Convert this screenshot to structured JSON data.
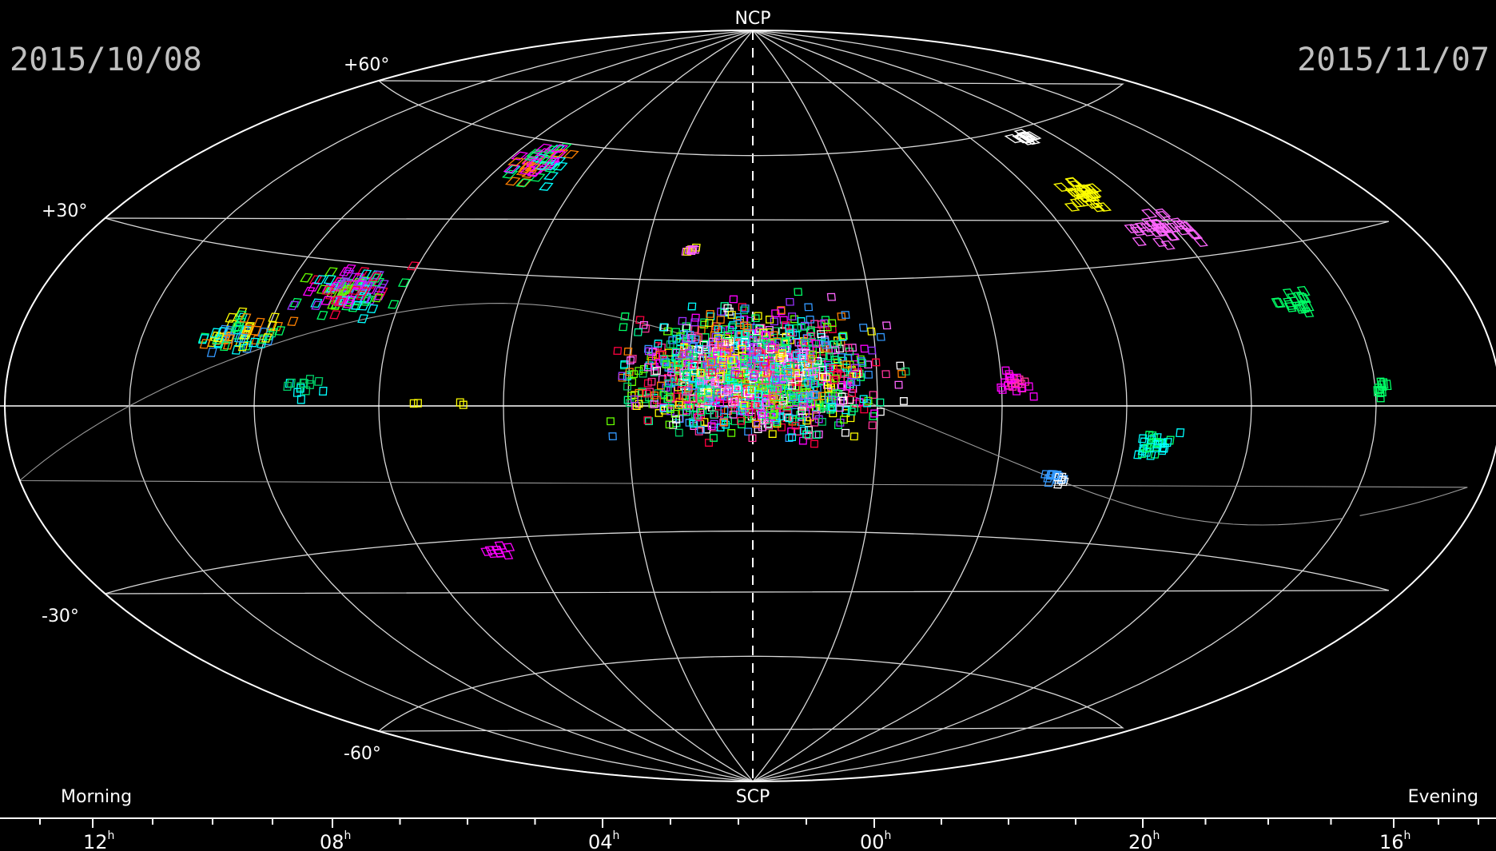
{
  "dates": {
    "start": "2015/10/08",
    "end": "2015/11/07"
  },
  "poles": {
    "north": "NCP",
    "south": "SCP"
  },
  "declination_labels": [
    {
      "dec": 60,
      "text": "+60°"
    },
    {
      "dec": 30,
      "text": "+30°"
    },
    {
      "dec": -30,
      "text": "-30°"
    },
    {
      "dec": -60,
      "text": "-60°"
    }
  ],
  "sides": {
    "left": "Morning",
    "right": "Evening"
  },
  "ra_labels": [
    {
      "hours": "12",
      "sup": "h"
    },
    {
      "hours": "08",
      "sup": "h"
    },
    {
      "hours": "04",
      "sup": "h"
    },
    {
      "hours": "00",
      "sup": "h"
    },
    {
      "hours": "20",
      "sup": "h"
    },
    {
      "hours": "16",
      "sup": "h"
    }
  ],
  "colors": {
    "background": "#000000",
    "grid": "#d9d9d9",
    "boundary": "#ffffff",
    "fields": [
      "#ff00ff",
      "#00ff66",
      "#00ffff",
      "#ff8000",
      "#ffff00",
      "#ff0040",
      "#ffffff",
      "#3399ff",
      "#9933ff",
      "#66ff00",
      "#00ff99",
      "#ff66ff",
      "#00cc66",
      "#ff3399"
    ]
  },
  "map": {
    "projection": "aitoff",
    "center_ra_hours": 2,
    "ra_direction": "increasing-right-to-left",
    "field_clusters": [
      {
        "ra_h": 7.2,
        "dec": 55,
        "count": 55,
        "spread": [
          0.9,
          6
        ],
        "colors": [
          "#ff00ff",
          "#ff8000",
          "#00ff66",
          "#00ffff"
        ]
      },
      {
        "ra_h": 8.9,
        "dec": 24,
        "count": 120,
        "spread": [
          1.0,
          7
        ],
        "colors": [
          "#00ff66",
          "#00ffff",
          "#ff0040",
          "#ff00ff",
          "#66ff00",
          "#9933ff"
        ]
      },
      {
        "ra_h": 10.4,
        "dec": 14,
        "count": 70,
        "spread": [
          0.9,
          5
        ],
        "colors": [
          "#ff8000",
          "#ffff00",
          "#00ffff",
          "#00ff66",
          "#3399ff"
        ]
      },
      {
        "ra_h": 9.2,
        "dec": 4,
        "count": 14,
        "spread": [
          0.4,
          3
        ],
        "colors": [
          "#00cc66",
          "#00ffff"
        ]
      },
      {
        "ra_h": 6.7,
        "dec": 0.5,
        "count": 2,
        "spread": [
          0.1,
          0.5
        ],
        "colors": [
          "#ffff00"
        ]
      },
      {
        "ra_h": 7.4,
        "dec": 0.5,
        "count": 2,
        "spread": [
          0.1,
          0.5
        ],
        "colors": [
          "#ffff00"
        ]
      },
      {
        "ra_h": 6.6,
        "dec": -33,
        "count": 10,
        "spread": [
          0.4,
          2
        ],
        "colors": [
          "#ff00ff"
        ]
      },
      {
        "ra_h": 3.2,
        "dec": 37,
        "count": 8,
        "spread": [
          0.3,
          2
        ],
        "colors": [
          "#ff66ff",
          "#ffff00"
        ]
      },
      {
        "ra_h": 2.0,
        "dec": 8,
        "count": 1500,
        "spread": [
          2.6,
          20
        ],
        "colors": [
          "#ff00ff",
          "#00ff66",
          "#00ffff",
          "#ff8000",
          "#ffff00",
          "#ff0040",
          "#ffffff",
          "#3399ff",
          "#9933ff",
          "#66ff00",
          "#00ff99",
          "#ff66ff",
          "#00cc66",
          "#ff3399"
        ]
      },
      {
        "ra_h": 21.0,
        "dec": -16,
        "count": 18,
        "spread": [
          0.4,
          2
        ],
        "colors": [
          "#3399ff",
          "#ffffff"
        ]
      },
      {
        "ra_h": 19.5,
        "dec": -8,
        "count": 30,
        "spread": [
          0.5,
          4
        ],
        "colors": [
          "#00ffff",
          "#00ff66"
        ]
      },
      {
        "ra_h": 21.8,
        "dec": 5,
        "count": 25,
        "spread": [
          0.4,
          4
        ],
        "colors": [
          "#ff00ff",
          "#ff3399"
        ]
      },
      {
        "ra_h": 18.8,
        "dec": 58,
        "count": 10,
        "spread": [
          0.5,
          2
        ],
        "colors": [
          "#ffffff"
        ]
      },
      {
        "ra_h": 19.0,
        "dec": 45,
        "count": 28,
        "spread": [
          0.6,
          4
        ],
        "colors": [
          "#ffff00"
        ]
      },
      {
        "ra_h": 18.2,
        "dec": 36,
        "count": 35,
        "spread": [
          0.8,
          5
        ],
        "colors": [
          "#ff66ff"
        ]
      },
      {
        "ra_h": 16.9,
        "dec": 20,
        "count": 18,
        "spread": [
          0.4,
          3
        ],
        "colors": [
          "#00ff66"
        ]
      },
      {
        "ra_h": 15.9,
        "dec": 3,
        "count": 10,
        "spread": [
          0.15,
          2
        ],
        "colors": [
          "#00ff66"
        ]
      }
    ]
  }
}
